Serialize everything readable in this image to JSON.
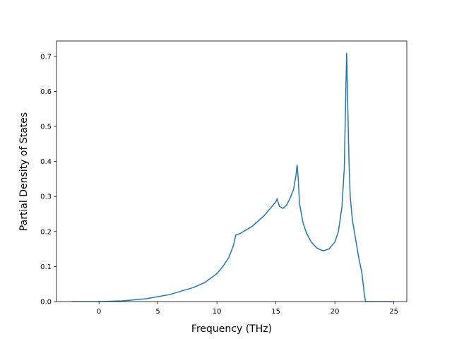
{
  "chart_data": {
    "type": "line",
    "xlabel": "Frequency (THz)",
    "ylabel": "Partial Density of States",
    "x": [
      -2.3,
      0,
      2,
      4,
      6,
      8,
      9,
      10,
      10.5,
      11,
      11.4,
      11.6,
      12,
      13,
      14,
      14.5,
      15,
      15.1,
      15.3,
      15.6,
      15.9,
      16.2,
      16.5,
      16.7,
      16.8,
      16.9,
      17,
      17.3,
      17.6,
      18,
      18.5,
      19,
      19.5,
      20,
      20.3,
      20.6,
      20.8,
      20.9,
      21,
      21.1,
      21.2,
      21.3,
      21.5,
      21.8,
      22,
      22.3,
      22.5,
      22.6,
      25
    ],
    "series": [
      {
        "color": "#1f77b4",
        "values": [
          0,
          0,
          0.002,
          0.008,
          0.02,
          0.04,
          0.055,
          0.08,
          0.1,
          0.125,
          0.16,
          0.19,
          0.195,
          0.215,
          0.245,
          0.265,
          0.285,
          0.293,
          0.272,
          0.266,
          0.275,
          0.295,
          0.32,
          0.36,
          0.39,
          0.35,
          0.28,
          0.225,
          0.195,
          0.17,
          0.152,
          0.145,
          0.15,
          0.17,
          0.2,
          0.27,
          0.38,
          0.55,
          0.71,
          0.55,
          0.4,
          0.3,
          0.23,
          0.17,
          0.13,
          0.08,
          0.02,
          0,
          0
        ]
      }
    ],
    "xlim": [
      -3.6,
      26.1
    ],
    "ylim": [
      0,
      0.744
    ],
    "xticks": [
      0,
      5,
      10,
      15,
      20,
      25
    ],
    "yticks": [
      {
        "value": 0,
        "label": "0.0"
      },
      0.1,
      0.2,
      0.3,
      0.4,
      0.5,
      0.6,
      0.7
    ]
  }
}
